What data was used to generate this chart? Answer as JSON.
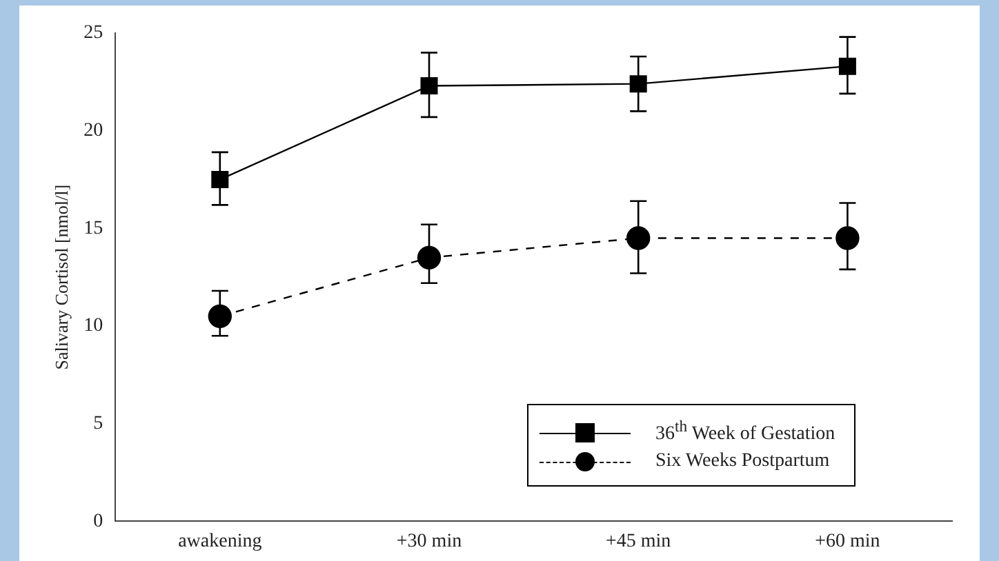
{
  "chart_data": {
    "type": "line",
    "ylabel": "Salivary Cortisol [nmol/l]",
    "categories": [
      "awakening",
      "+30 min",
      "+45 min",
      "+60 min"
    ],
    "series": [
      {
        "name": "36$^{th}$ Week of Gestation",
        "color": "#000000",
        "marker": "square",
        "line_style": "solid",
        "values": [
          17.5,
          22.3,
          22.4,
          23.3
        ],
        "errors": [
          [
            16.2,
            18.9
          ],
          [
            20.7,
            24.0
          ],
          [
            21.0,
            23.8
          ],
          [
            21.9,
            24.8
          ]
        ]
      },
      {
        "name": "Six Weeks Postpartum",
        "color": "#000000",
        "marker": "circle",
        "line_style": "dashed",
        "values": [
          10.5,
          13.5,
          14.5,
          14.5
        ],
        "errors": [
          [
            9.5,
            11.8
          ],
          [
            12.2,
            15.2
          ],
          [
            12.7,
            16.4
          ],
          [
            12.9,
            16.3
          ]
        ]
      }
    ],
    "ylim": [
      0,
      25
    ],
    "yticks": [
      0,
      5,
      10,
      15,
      20,
      25
    ],
    "grid": false,
    "legend": "bottom right"
  }
}
